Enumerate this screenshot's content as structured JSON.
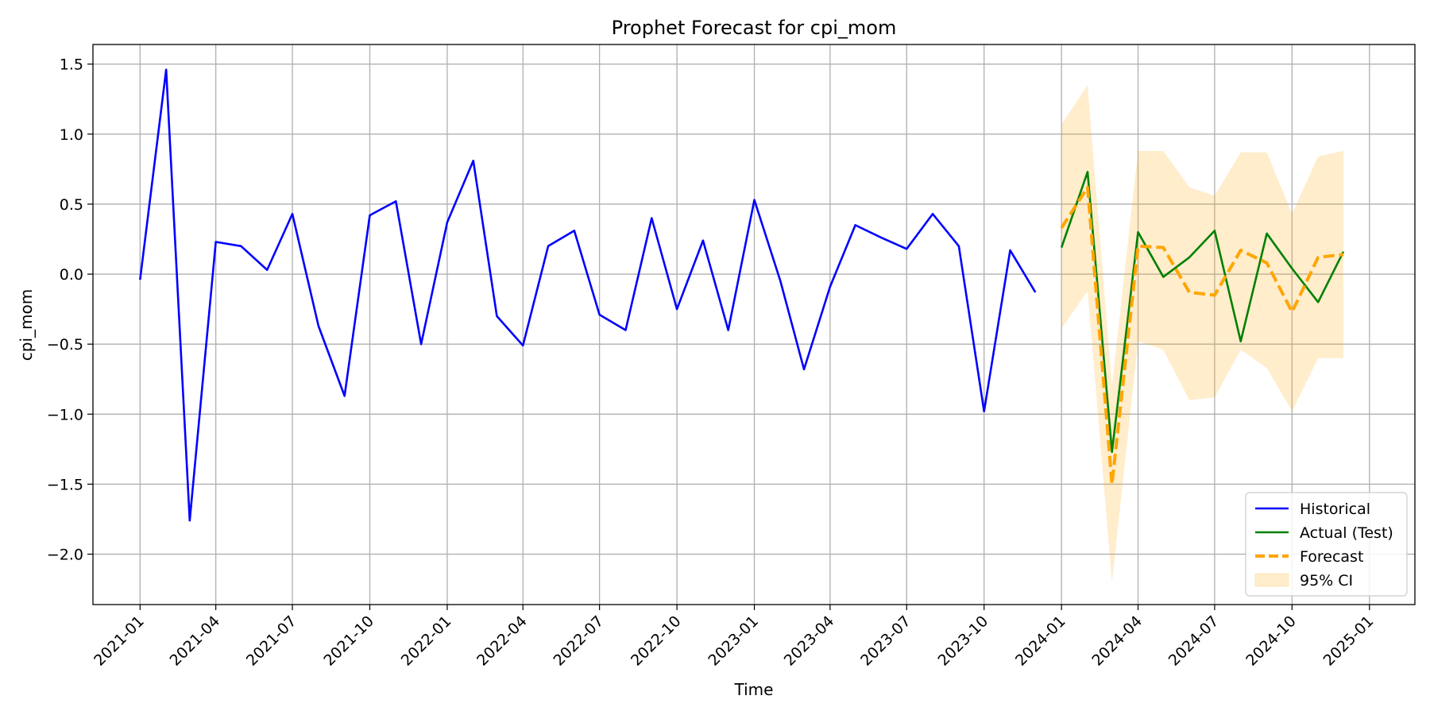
{
  "chart_data": {
    "type": "line",
    "title": "Prophet Forecast for cpi_mom",
    "xlabel": "Time",
    "ylabel": "cpi_mom",
    "x_ticks": [
      "2021-01",
      "2021-04",
      "2021-07",
      "2021-10",
      "2022-01",
      "2022-04",
      "2022-07",
      "2022-10",
      "2023-01",
      "2023-04",
      "2023-07",
      "2023-10",
      "2024-01",
      "2024-04",
      "2024-07",
      "2024-10",
      "2025-01"
    ],
    "y_ticks": [
      "1.5",
      "1.0",
      "0.5",
      "0.0",
      "−0.5",
      "−1.0",
      "−1.5",
      "−2.0"
    ],
    "ylim": [
      -2.36,
      1.64
    ],
    "xlim": [
      "2020-11-06",
      "2025-02-24"
    ],
    "grid": true,
    "legend_position": "lower-right",
    "series": [
      {
        "name": "Historical",
        "color": "#0000ff",
        "style": "solid",
        "x": [
          "2021-01",
          "2021-02",
          "2021-03",
          "2021-04",
          "2021-05",
          "2021-06",
          "2021-07",
          "2021-08",
          "2021-09",
          "2021-10",
          "2021-11",
          "2021-12",
          "2022-01",
          "2022-02",
          "2022-03",
          "2022-04",
          "2022-05",
          "2022-06",
          "2022-07",
          "2022-08",
          "2022-09",
          "2022-10",
          "2022-11",
          "2022-12",
          "2023-01",
          "2023-02",
          "2023-03",
          "2023-04",
          "2023-05",
          "2023-06",
          "2023-07",
          "2023-08",
          "2023-09",
          "2023-10",
          "2023-11",
          "2023-12"
        ],
        "values": [
          -0.04,
          1.46,
          -1.76,
          0.23,
          0.2,
          0.03,
          0.43,
          -0.37,
          -0.87,
          0.42,
          0.52,
          -0.5,
          0.37,
          0.81,
          -0.3,
          -0.51,
          0.2,
          0.31,
          -0.29,
          -0.4,
          0.4,
          -0.25,
          0.24,
          -0.4,
          0.53,
          -0.05,
          -0.68,
          -0.09,
          0.35,
          0.26,
          0.18,
          0.43,
          0.2,
          -0.98,
          0.17,
          -0.13
        ]
      },
      {
        "name": "Actual (Test)",
        "color": "#008000",
        "style": "solid",
        "x": [
          "2024-01",
          "2024-02",
          "2024-03",
          "2024-04",
          "2024-05",
          "2024-06",
          "2024-07",
          "2024-08",
          "2024-09",
          "2024-10",
          "2024-11",
          "2024-12"
        ],
        "values": [
          0.19,
          0.73,
          -1.27,
          0.3,
          -0.02,
          0.12,
          0.31,
          -0.48,
          0.29,
          0.04,
          -0.2,
          0.16
        ]
      },
      {
        "name": "Forecast",
        "color": "#ffa500",
        "style": "dashed",
        "x": [
          "2024-01",
          "2024-02",
          "2024-03",
          "2024-04",
          "2024-05",
          "2024-06",
          "2024-07",
          "2024-08",
          "2024-09",
          "2024-10",
          "2024-11",
          "2024-12"
        ],
        "values": [
          0.33,
          0.62,
          -1.5,
          0.2,
          0.19,
          -0.13,
          -0.15,
          0.17,
          0.08,
          -0.27,
          0.12,
          0.14
        ]
      }
    ],
    "band": {
      "name": "95% CI",
      "color": "#ffa500",
      "opacity": 0.2,
      "x": [
        "2024-01",
        "2024-02",
        "2024-03",
        "2024-04",
        "2024-05",
        "2024-06",
        "2024-07",
        "2024-08",
        "2024-09",
        "2024-10",
        "2024-11",
        "2024-12"
      ],
      "lower": [
        -0.39,
        -0.12,
        -2.2,
        -0.48,
        -0.54,
        -0.9,
        -0.88,
        -0.54,
        -0.67,
        -0.98,
        -0.6,
        -0.6
      ],
      "upper": [
        1.07,
        1.35,
        -0.8,
        0.88,
        0.88,
        0.62,
        0.56,
        0.87,
        0.87,
        0.43,
        0.84,
        0.88
      ]
    }
  }
}
